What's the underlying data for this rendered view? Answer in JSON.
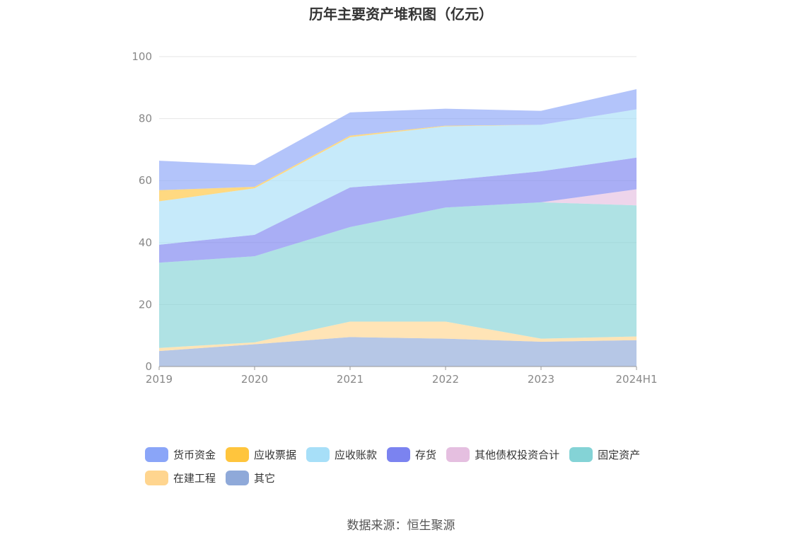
{
  "title": "历年主要资产堆积图（亿元）",
  "source": "数据来源：恒生聚源",
  "chart_data": {
    "type": "area",
    "stacked": true,
    "title": "历年主要资产堆积图（亿元）",
    "x": [
      "2019",
      "2020",
      "2021",
      "2022",
      "2023",
      "2024H1"
    ],
    "ylim": [
      0,
      100
    ],
    "yticks": [
      0,
      20,
      40,
      60,
      80,
      100
    ],
    "grid": true,
    "legend_position": "bottom",
    "series": [
      {
        "name": "其它",
        "color": "#8fa9d9",
        "values": [
          5.0,
          7.2,
          9.5,
          9.0,
          8.0,
          8.5
        ]
      },
      {
        "name": "在建工程",
        "color": "#ffd58f",
        "values": [
          1.0,
          0.6,
          5.0,
          5.5,
          1.0,
          1.2
        ]
      },
      {
        "name": "固定资产",
        "color": "#84d3d6",
        "values": [
          27.5,
          27.8,
          30.5,
          36.8,
          44.0,
          42.3
        ]
      },
      {
        "name": "其他债权投资合计",
        "color": "#e5bfe0",
        "values": [
          0,
          0,
          0,
          0,
          0,
          5.2
        ]
      },
      {
        "name": "存货",
        "color": "#7b83f0",
        "values": [
          5.8,
          6.9,
          12.8,
          8.7,
          10.0,
          10.2
        ]
      },
      {
        "name": "应收账款",
        "color": "#a7dff8",
        "values": [
          14.0,
          15.0,
          16.2,
          17.5,
          15.0,
          15.6
        ]
      },
      {
        "name": "应收票据",
        "color": "#ffc53d",
        "values": [
          3.6,
          0.5,
          0.5,
          0.2,
          0,
          0
        ]
      },
      {
        "name": "货币资金",
        "color": "#8aa5f8",
        "values": [
          9.5,
          7.0,
          7.5,
          5.5,
          4.5,
          6.5
        ]
      }
    ]
  },
  "legend": [
    {
      "label": "货币资金",
      "color": "#8aa5f8"
    },
    {
      "label": "应收票据",
      "color": "#ffc53d"
    },
    {
      "label": "应收账款",
      "color": "#a7dff8"
    },
    {
      "label": "存货",
      "color": "#7b83f0"
    },
    {
      "label": "其他债权投资合计",
      "color": "#e5bfe0"
    },
    {
      "label": "固定资产",
      "color": "#84d3d6"
    },
    {
      "label": "在建工程",
      "color": "#ffd58f"
    },
    {
      "label": "其它",
      "color": "#8fa9d9"
    }
  ]
}
